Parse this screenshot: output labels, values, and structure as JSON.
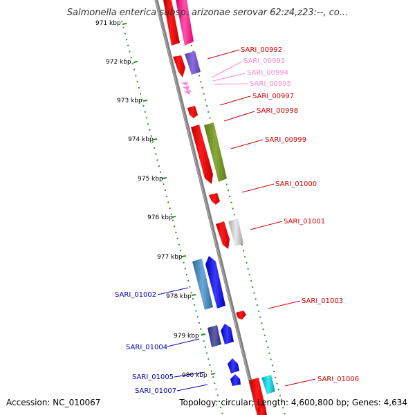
{
  "title": "Salmonella enterica subsp. arizonae serovar 62:z4,z23:--, co...",
  "footer": {
    "accession": "Accession: NC_010067",
    "topology": "Topology: circular; Length: 4,600,800 bp; Genes: 4,634"
  },
  "colors": {
    "backbone": "#888888",
    "ticks": "#2e8b2e",
    "forward_label": "#cc0000",
    "pseudo_label": "#ff88cc",
    "reverse_label": "#0000aa"
  },
  "kbp_ticks": [
    "971 kbp",
    "972 kbp",
    "973 kbp",
    "974 kbp",
    "975 kbp",
    "976 kbp",
    "977 kbp",
    "978 kbp",
    "979 kbp",
    "980 kbp"
  ],
  "gene_labels": [
    {
      "text": "SARI_00992",
      "strand": "forward"
    },
    {
      "text": "SARI_00993",
      "strand": "pseudo"
    },
    {
      "text": "SARI_00994",
      "strand": "pseudo"
    },
    {
      "text": "SARI_00995",
      "strand": "pseudo"
    },
    {
      "text": "SARI_00997",
      "strand": "forward"
    },
    {
      "text": "SARI_00998",
      "strand": "forward"
    },
    {
      "text": "SARI_00999",
      "strand": "forward"
    },
    {
      "text": "SARI_01000",
      "strand": "forward"
    },
    {
      "text": "SARI_01001",
      "strand": "forward"
    },
    {
      "text": "SARI_01003",
      "strand": "forward"
    },
    {
      "text": "SARI_01006",
      "strand": "forward"
    },
    {
      "text": "SARI_01002",
      "strand": "reverse"
    },
    {
      "text": "SARI_01004",
      "strand": "reverse"
    },
    {
      "text": "SARI_01005",
      "strand": "reverse"
    },
    {
      "text": "SARI_01007",
      "strand": "reverse"
    }
  ]
}
